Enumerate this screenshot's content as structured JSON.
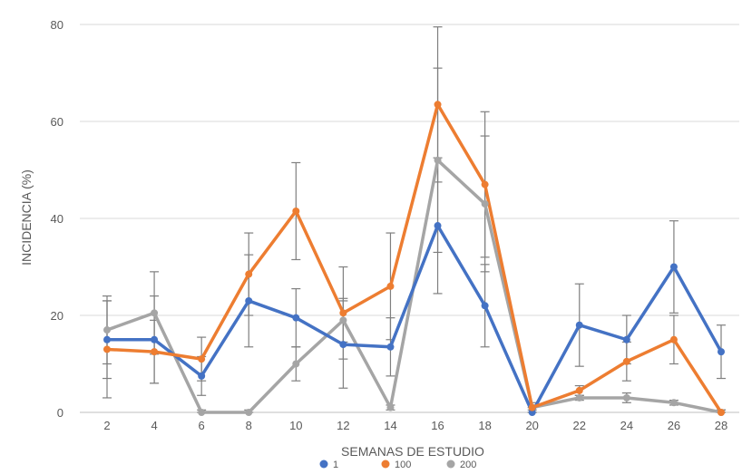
{
  "chart_data": {
    "type": "line",
    "title": "",
    "xlabel": "SEMANAS DE ESTUDIO",
    "ylabel": "INCIDENCIA (%)",
    "x": [
      2,
      4,
      6,
      8,
      10,
      12,
      14,
      16,
      18,
      20,
      22,
      24,
      26,
      28
    ],
    "xlim": [
      2,
      28
    ],
    "ylim": [
      0,
      80
    ],
    "yticks": [
      0,
      20,
      40,
      60,
      80
    ],
    "grid": "horizontal",
    "legend_position": "bottom",
    "series": [
      {
        "name": "1",
        "color": "#4472C4",
        "values": [
          15,
          15,
          7.5,
          23,
          19.5,
          14,
          13.5,
          38.5,
          22,
          0,
          18,
          15,
          30,
          12.5
        ],
        "error": [
          8,
          9,
          4,
          9.5,
          6,
          9,
          6,
          14,
          8.5,
          1,
          8.5,
          5,
          9.5,
          5.5
        ]
      },
      {
        "name": "100",
        "color": "#ED7D31",
        "values": [
          13,
          12.5,
          11,
          28.5,
          41.5,
          20.5,
          26,
          63.5,
          47,
          1,
          4.5,
          10.5,
          15,
          0
        ],
        "error": [
          10,
          6.5,
          4.5,
          8.5,
          10,
          9.5,
          11,
          16,
          15,
          1,
          1,
          4,
          5,
          0.5
        ]
      },
      {
        "name": "200",
        "color": "#A5A5A5",
        "values": [
          17,
          20.5,
          0,
          0,
          10,
          19,
          1,
          52,
          43,
          1,
          3,
          3,
          2,
          0
        ],
        "error": [
          7,
          8.5,
          0.5,
          0.5,
          3.5,
          4.5,
          0.5,
          19,
          14,
          0.5,
          0.5,
          1,
          0.5,
          0.5
        ]
      }
    ]
  }
}
